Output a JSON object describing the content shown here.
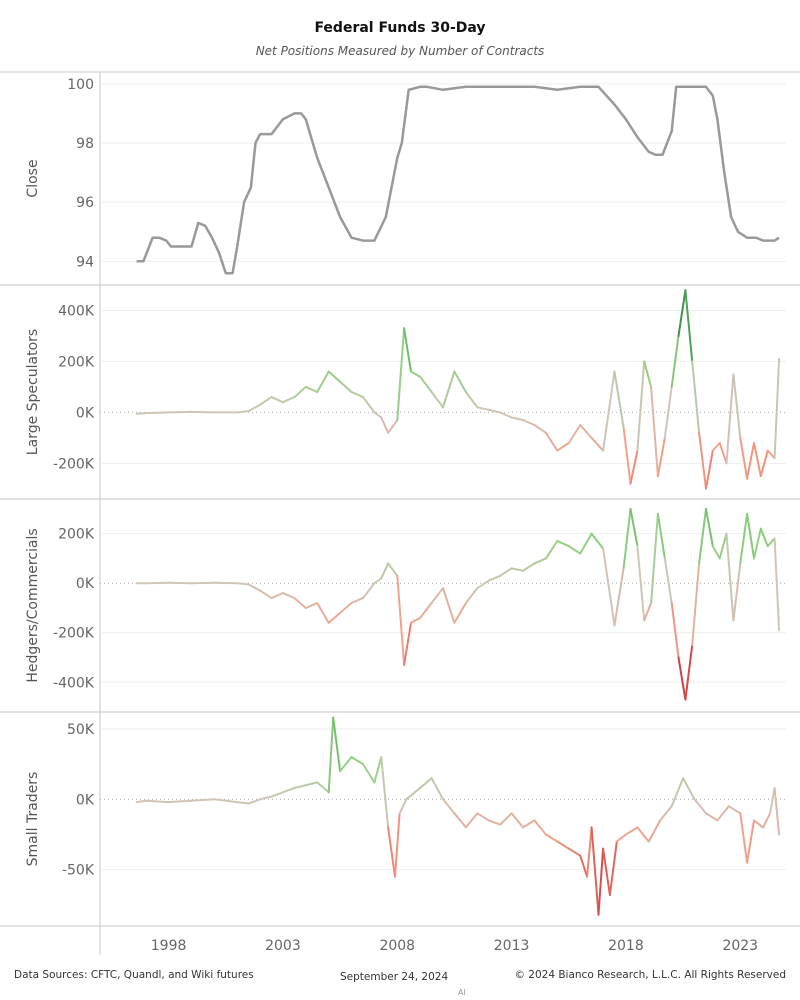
{
  "title": "Federal Funds 30-Day",
  "subtitle": "Net Positions Measured by Number of Contracts",
  "footer": {
    "sources": "Data Sources: CFTC, Quandl, and Wiki futures",
    "date": "September 24, 2024",
    "copyright": "© 2024 Bianco Research, L.L.C. All Rights Reserved",
    "mark": "AI"
  },
  "colors": {
    "price_line": "#999999",
    "positive_strong": "#1e7b34",
    "positive_light": "#8fd07f",
    "neutral": "#cfc6b8",
    "negative_light": "#f4a089",
    "negative_strong": "#c0151f",
    "gridline": "#eeeeee",
    "zero_line": "#aaaaaa"
  },
  "chart_data": [
    {
      "type": "line",
      "ylabel": "Close",
      "xlim": [
        1995.0,
        2025.0
      ],
      "ylim": [
        93.2,
        100.4
      ],
      "yticks": [
        94,
        96,
        98,
        100
      ],
      "ytick_labels": [
        "94",
        "96",
        "98",
        "100"
      ],
      "xticks": [
        1998,
        2003,
        2008,
        2013,
        2018,
        2023
      ],
      "xtick_labels": [
        "1998",
        "2003",
        "2008",
        "2013",
        "2018",
        "2023"
      ],
      "color_mode": "solid",
      "x": [
        1996.6,
        1996.9,
        1997.1,
        1997.3,
        1997.6,
        1997.9,
        1998.1,
        1998.4,
        1998.7,
        1999.0,
        1999.3,
        1999.6,
        1999.9,
        2000.2,
        2000.5,
        2000.8,
        2001.0,
        2001.3,
        2001.6,
        2001.8,
        2002.0,
        2002.2,
        2002.5,
        2003.0,
        2003.5,
        2003.8,
        2004.0,
        2004.5,
        2005.0,
        2005.5,
        2006.0,
        2006.5,
        2006.8,
        2007.0,
        2007.5,
        2008.0,
        2008.2,
        2008.5,
        2009.0,
        2009.3,
        2010.0,
        2011.0,
        2012.0,
        2013.0,
        2014.0,
        2015.0,
        2016.0,
        2016.8,
        2017.5,
        2018.0,
        2018.5,
        2019.0,
        2019.3,
        2019.6,
        2020.0,
        2020.2,
        2020.5,
        2021.0,
        2021.5,
        2021.8,
        2022.0,
        2022.3,
        2022.6,
        2022.9,
        2023.3,
        2023.7,
        2024.0,
        2024.5,
        2024.7
      ],
      "y": [
        94.0,
        94.0,
        94.4,
        94.8,
        94.8,
        94.7,
        94.5,
        94.5,
        94.5,
        94.5,
        95.3,
        95.2,
        94.8,
        94.3,
        93.6,
        93.6,
        94.5,
        96.0,
        96.5,
        98.0,
        98.3,
        98.3,
        98.3,
        98.8,
        99.0,
        99.0,
        98.8,
        97.5,
        96.5,
        95.5,
        94.8,
        94.7,
        94.7,
        94.7,
        95.5,
        97.5,
        98.0,
        99.8,
        99.9,
        99.9,
        99.8,
        99.9,
        99.9,
        99.9,
        99.9,
        99.8,
        99.9,
        99.9,
        99.3,
        98.8,
        98.2,
        97.7,
        97.6,
        97.6,
        98.4,
        99.9,
        99.9,
        99.9,
        99.9,
        99.6,
        98.8,
        97.0,
        95.5,
        95.0,
        94.8,
        94.8,
        94.7,
        94.7,
        94.8
      ]
    },
    {
      "type": "line",
      "ylabel": "Large Speculators",
      "xlim": [
        1995.0,
        2025.0
      ],
      "ylim": [
        -340000,
        500000
      ],
      "yticks": [
        -200000,
        0,
        200000,
        400000
      ],
      "ytick_labels": [
        "-200K",
        "0K",
        "200K",
        "400K"
      ],
      "color_mode": "diverging",
      "color_max": 480000,
      "x": [
        1996.6,
        1997.0,
        1998.0,
        1999.0,
        2000.0,
        2001.0,
        2001.5,
        2002.0,
        2002.5,
        2003.0,
        2003.5,
        2004.0,
        2004.5,
        2005.0,
        2005.5,
        2006.0,
        2006.5,
        2007.0,
        2007.3,
        2007.6,
        2008.0,
        2008.3,
        2008.6,
        2009.0,
        2009.5,
        2010.0,
        2010.5,
        2011.0,
        2011.5,
        2012.0,
        2012.5,
        2013.0,
        2013.5,
        2014.0,
        2014.5,
        2015.0,
        2015.5,
        2016.0,
        2016.5,
        2017.0,
        2017.5,
        2017.9,
        2018.2,
        2018.5,
        2018.8,
        2019.1,
        2019.4,
        2019.7,
        2020.0,
        2020.3,
        2020.6,
        2020.9,
        2021.2,
        2021.5,
        2021.8,
        2022.1,
        2022.4,
        2022.7,
        2023.0,
        2023.3,
        2023.6,
        2023.9,
        2024.2,
        2024.5,
        2024.7
      ],
      "y": [
        -5000,
        -3000,
        0,
        2000,
        0,
        0,
        5000,
        30000,
        60000,
        40000,
        60000,
        100000,
        80000,
        160000,
        120000,
        80000,
        60000,
        0,
        -20000,
        -80000,
        -30000,
        330000,
        160000,
        140000,
        80000,
        20000,
        160000,
        80000,
        20000,
        10000,
        0,
        -20000,
        -30000,
        -50000,
        -80000,
        -150000,
        -120000,
        -50000,
        -100000,
        -150000,
        160000,
        -60000,
        -280000,
        -150000,
        200000,
        100000,
        -250000,
        -100000,
        100000,
        300000,
        480000,
        200000,
        -80000,
        -300000,
        -150000,
        -120000,
        -200000,
        150000,
        -100000,
        -260000,
        -120000,
        -250000,
        -150000,
        -180000,
        210000
      ]
    },
    {
      "type": "line",
      "ylabel": "Hedgers/Commercials",
      "xlim": [
        1995.0,
        2025.0
      ],
      "ylim": [
        -520000,
        340000
      ],
      "yticks": [
        -400000,
        -200000,
        0,
        200000
      ],
      "ytick_labels": [
        "-400K",
        "-200K",
        "0K",
        "200K"
      ],
      "color_mode": "diverging",
      "color_max": 480000,
      "x": [
        1996.6,
        1997.0,
        1998.0,
        1999.0,
        2000.0,
        2001.0,
        2001.5,
        2002.0,
        2002.5,
        2003.0,
        2003.5,
        2004.0,
        2004.5,
        2005.0,
        2005.5,
        2006.0,
        2006.5,
        2007.0,
        2007.3,
        2007.6,
        2008.0,
        2008.3,
        2008.6,
        2009.0,
        2009.5,
        2010.0,
        2010.5,
        2011.0,
        2011.5,
        2012.0,
        2012.5,
        2013.0,
        2013.5,
        2014.0,
        2014.5,
        2015.0,
        2015.5,
        2016.0,
        2016.5,
        2017.0,
        2017.5,
        2017.9,
        2018.2,
        2018.5,
        2018.8,
        2019.1,
        2019.4,
        2019.7,
        2020.0,
        2020.3,
        2020.6,
        2020.9,
        2021.2,
        2021.5,
        2021.8,
        2022.1,
        2022.4,
        2022.7,
        2023.0,
        2023.3,
        2023.6,
        2023.9,
        2024.2,
        2024.5,
        2024.7
      ],
      "y": [
        0,
        0,
        2000,
        0,
        2000,
        0,
        -5000,
        -30000,
        -60000,
        -40000,
        -60000,
        -100000,
        -80000,
        -160000,
        -120000,
        -80000,
        -60000,
        0,
        20000,
        80000,
        30000,
        -330000,
        -160000,
        -140000,
        -80000,
        -20000,
        -160000,
        -80000,
        -20000,
        10000,
        30000,
        60000,
        50000,
        80000,
        100000,
        170000,
        150000,
        120000,
        200000,
        140000,
        -170000,
        60000,
        300000,
        150000,
        -150000,
        -80000,
        280000,
        100000,
        -80000,
        -300000,
        -470000,
        -250000,
        80000,
        300000,
        150000,
        100000,
        200000,
        -150000,
        80000,
        280000,
        100000,
        220000,
        150000,
        180000,
        -190000
      ]
    },
    {
      "type": "line",
      "ylabel": "Small Traders",
      "xlim": [
        1995.0,
        2025.0
      ],
      "ylim": [
        -90000,
        62000
      ],
      "yticks": [
        -50000,
        0,
        50000
      ],
      "ytick_labels": [
        "-50K",
        "0K",
        "50K"
      ],
      "color_mode": "diverging",
      "color_max": 80000,
      "x": [
        1996.6,
        1997.0,
        1998.0,
        1999.0,
        2000.0,
        2001.0,
        2001.5,
        2002.0,
        2002.5,
        2003.0,
        2003.5,
        2004.0,
        2004.5,
        2005.0,
        2005.2,
        2005.5,
        2006.0,
        2006.5,
        2007.0,
        2007.3,
        2007.6,
        2007.9,
        2008.1,
        2008.4,
        2009.0,
        2009.5,
        2010.0,
        2010.5,
        2011.0,
        2011.5,
        2012.0,
        2012.5,
        2013.0,
        2013.5,
        2014.0,
        2014.5,
        2015.0,
        2015.5,
        2016.0,
        2016.3,
        2016.5,
        2016.8,
        2017.0,
        2017.3,
        2017.6,
        2018.0,
        2018.5,
        2019.0,
        2019.5,
        2020.0,
        2020.5,
        2021.0,
        2021.5,
        2022.0,
        2022.5,
        2023.0,
        2023.3,
        2023.6,
        2024.0,
        2024.3,
        2024.5,
        2024.7
      ],
      "y": [
        -2000,
        -1000,
        -2000,
        -1000,
        0,
        -2000,
        -3000,
        0,
        2000,
        5000,
        8000,
        10000,
        12000,
        5000,
        58000,
        20000,
        30000,
        25000,
        12000,
        30000,
        -20000,
        -55000,
        -10000,
        0,
        8000,
        15000,
        0,
        -10000,
        -20000,
        -10000,
        -15000,
        -18000,
        -10000,
        -20000,
        -15000,
        -25000,
        -30000,
        -35000,
        -40000,
        -55000,
        -20000,
        -82000,
        -35000,
        -68000,
        -30000,
        -25000,
        -20000,
        -30000,
        -15000,
        -5000,
        15000,
        0,
        -10000,
        -15000,
        -5000,
        -10000,
        -45000,
        -15000,
        -20000,
        -10000,
        8000,
        -25000
      ]
    }
  ]
}
